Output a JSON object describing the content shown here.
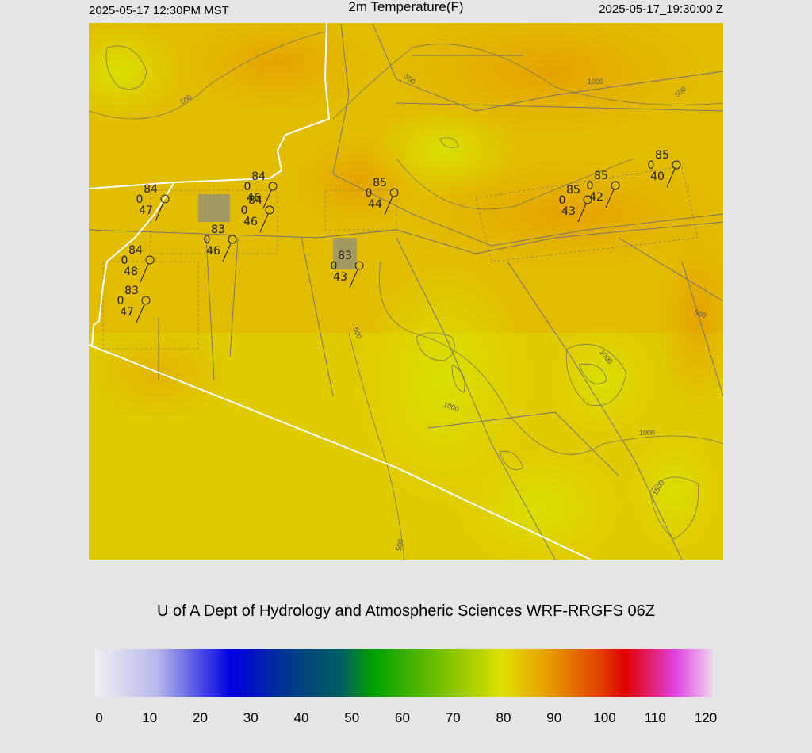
{
  "header": {
    "local_time": "2025-05-17 12:30PM MST",
    "title": "2m Temperature(F)",
    "utc_time": "2025-05-17_19:30:00 Z"
  },
  "stations": [
    {
      "temperature": 84,
      "code": 0,
      "dewpoint": 47
    },
    {
      "temperature": 84,
      "code": 0,
      "dewpoint": 46
    },
    {
      "temperature": 84,
      "code": 0,
      "dewpoint": 46
    },
    {
      "temperature": 83,
      "code": 0,
      "dewpoint": 46
    },
    {
      "temperature": 84,
      "code": 0,
      "dewpoint": 48
    },
    {
      "temperature": 83,
      "code": 0,
      "dewpoint": 47
    },
    {
      "temperature": 85,
      "code": 0,
      "dewpoint": 44
    },
    {
      "temperature": 83,
      "code": 0,
      "dewpoint": 43
    },
    {
      "temperature": 85,
      "code": 0,
      "dewpoint": 43
    },
    {
      "temperature": 85,
      "code": 0,
      "dewpoint": 42
    },
    {
      "temperature": 85,
      "code": 0,
      "dewpoint": 40
    }
  ],
  "contour_labels": [
    500,
    500,
    1000,
    500,
    500,
    1000,
    500,
    1000,
    1000,
    1500,
    500
  ],
  "credit": "U of A Dept of Hydrology and Atmospheric Sciences WRF-RRGFS 06Z",
  "colorbar": {
    "range": [
      0,
      120
    ],
    "ticks": [
      0,
      10,
      20,
      30,
      40,
      50,
      60,
      70,
      80,
      90,
      100,
      110,
      120
    ]
  }
}
